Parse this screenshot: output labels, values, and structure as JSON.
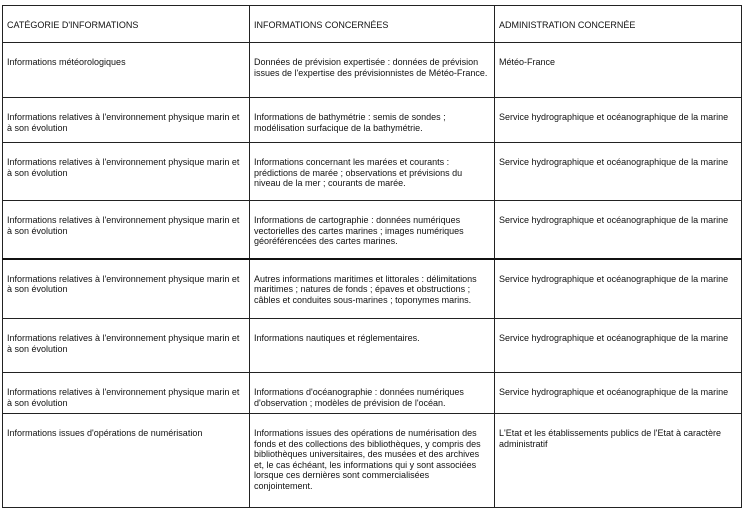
{
  "headers": [
    "CATÉGORIE D'INFORMATIONS",
    "INFORMATIONS CONCERNÉES",
    "ADMINISTRATION CONCERNÉE"
  ],
  "rows": [
    {
      "category": "Informations météorologiques",
      "info": "Données de prévision expertisée : données de prévision issues de l'expertise des prévisionnistes de Météo-France.",
      "admin": "Météo-France"
    },
    {
      "category": "Informations relatives à l'environnement physique marin et à son évolution",
      "info": "Informations de bathymétrie : semis de sondes ; modélisation surfacique de la bathymétrie.",
      "admin": "Service hydrographique et océanographique de la marine"
    },
    {
      "category": "Informations relatives à l'environnement physique marin et à son évolution",
      "info": "Informations concernant les marées et courants : prédictions de marée ; observations et prévisions du niveau de la mer ; courants de marée.",
      "admin": "Service hydrographique et océanographique de la marine"
    },
    {
      "category": "Informations relatives à l'environnement physique marin et à son évolution",
      "info": "Informations de cartographie : données numériques vectorielles des cartes marines ; images numériques géoréférencées des cartes marines.",
      "admin": "Service hydrographique et océanographique de la marine"
    },
    {
      "category": "Informations relatives à l'environnement physique marin et à son évolution",
      "info": "Autres informations maritimes et littorales : délimitations maritimes ; natures de fonds ; épaves et obstructions ; câbles et conduites sous-marines ; toponymes marins.",
      "admin": "Service hydrographique et océanographique de la marine"
    },
    {
      "category": "Informations relatives à l'environnement physique marin et à son évolution",
      "info": "Informations nautiques et réglementaires.",
      "admin": "Service hydrographique et océanographique de la marine"
    },
    {
      "category": "Informations relatives à l'environnement physique marin et à son évolution",
      "info": "Informations d'océanographie : données numériques d'observation ; modèles de prévision de l'océan.",
      "admin": "Service hydrographique et océanographique de la marine"
    },
    {
      "category": "Informations issues d'opérations de numérisation",
      "info": "Informations issues des opérations de numérisation des fonds et des collections des bibliothèques, y compris des bibliothèques universitaires, des musées et des archives et, le cas échéant, les informations qui y sont associées lorsque ces dernières sont commercialisées conjointement.",
      "admin": "L'Etat et les établissements publics de l'Etat à caractère administratif"
    }
  ]
}
